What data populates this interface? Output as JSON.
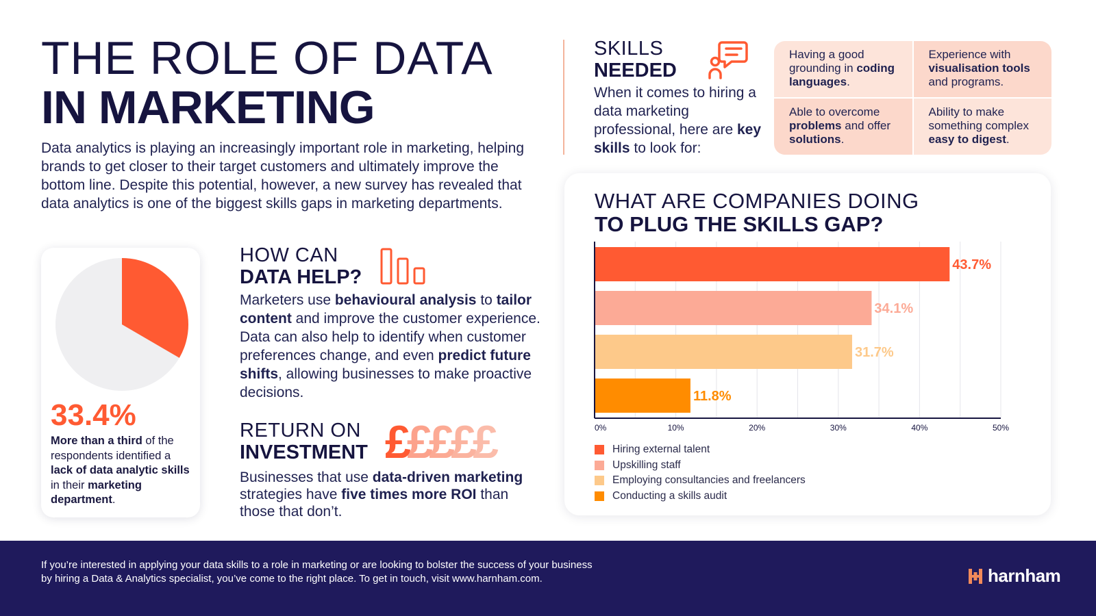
{
  "title": {
    "line1": "THE ROLE OF DATA",
    "line2": "IN MARKETING"
  },
  "intro": "Data analytics is playing an increasingly important role in marketing, helping brands to get closer to their target customers and ultimately improve the bottom line. Despite this potential, however, a new survey has revealed that data analytics is one of the biggest skills gaps in marketing departments.",
  "stat": {
    "value": "33.4%",
    "fraction": 0.334,
    "desc_parts": [
      {
        "text": "More than a third",
        "bold": true
      },
      {
        "text": " of the respondents identified a ",
        "bold": false
      },
      {
        "text": "lack of data analytic skills",
        "bold": true
      },
      {
        "text": " in their ",
        "bold": false
      },
      {
        "text": "marketing department",
        "bold": true
      },
      {
        "text": ".",
        "bold": false
      }
    ]
  },
  "help": {
    "heading_light": "HOW CAN",
    "heading_bold": "DATA HELP?",
    "icon": "bar-chart-icon",
    "parts": [
      {
        "text": "Marketers use ",
        "bold": false
      },
      {
        "text": "behavioural analysis",
        "bold": true
      },
      {
        "text": " to ",
        "bold": false
      },
      {
        "text": "tailor content",
        "bold": true
      },
      {
        "text": " and improve the customer experience. Data can also help to identify when customer preferences change, and even ",
        "bold": false
      },
      {
        "text": "predict future shifts",
        "bold": true
      },
      {
        "text": ", allowing businesses to make proactive decisions.",
        "bold": false
      }
    ]
  },
  "roi": {
    "heading_light": "RETURN ON",
    "heading_bold": "INVESTMENT",
    "pounds": [
      "£",
      "£",
      "£",
      "£",
      "£"
    ],
    "pound_colors": [
      "#ff5a32",
      "#fca28c",
      "#fcaa94",
      "#fbb39f",
      "#fbbcaa"
    ],
    "parts": [
      {
        "text": "Businesses that use ",
        "bold": false
      },
      {
        "text": "data-driven marketing",
        "bold": true
      },
      {
        "text": " strategies have ",
        "bold": false
      },
      {
        "text": "five times more ROI",
        "bold": true
      },
      {
        "text": " than those that don’t.",
        "bold": false
      }
    ]
  },
  "skills": {
    "heading_light": "SKILLS",
    "heading_bold": "NEEDED",
    "icon": "chat-person-icon",
    "parts": [
      {
        "text": "When it comes to hiring a data marketing professional, here are ",
        "bold": false
      },
      {
        "text": "key skills",
        "bold": true
      },
      {
        "text": " to look for:",
        "bold": false
      }
    ],
    "cells": [
      [
        {
          "text": "Having a good grounding in ",
          "bold": false
        },
        {
          "text": "coding languages",
          "bold": true
        },
        {
          "text": ".",
          "bold": false
        }
      ],
      [
        {
          "text": "Experience with ",
          "bold": false
        },
        {
          "text": "visualisation tools",
          "bold": true
        },
        {
          "text": " and programs.",
          "bold": false
        }
      ],
      [
        {
          "text": "Able to overcome ",
          "bold": false
        },
        {
          "text": "problems",
          "bold": true
        },
        {
          "text": " and offer ",
          "bold": false
        },
        {
          "text": "solutions",
          "bold": true
        },
        {
          "text": ".",
          "bold": false
        }
      ],
      [
        {
          "text": "Ability to make something complex ",
          "bold": false
        },
        {
          "text": "easy to digest",
          "bold": true
        },
        {
          "text": ".",
          "bold": false
        }
      ]
    ]
  },
  "chart_data": {
    "type": "bar",
    "orientation": "horizontal",
    "title_light": "WHAT ARE COMPANIES DOING",
    "title_bold": "TO PLUG THE SKILLS GAP?",
    "categories": [
      "Hiring external talent",
      "Upskilling staff",
      "Employing consultancies and freelancers",
      "Conducting a skills audit"
    ],
    "values": [
      43.7,
      34.1,
      31.7,
      11.8
    ],
    "value_labels": [
      "43.7%",
      "34.1%",
      "31.7%",
      "11.8%"
    ],
    "colors": [
      "#ff5a32",
      "#fcaa96",
      "#fdc98a",
      "#ff8c00"
    ],
    "xlim": [
      0,
      50
    ],
    "ticks": [
      0,
      10,
      20,
      30,
      40,
      50
    ],
    "tick_labels": [
      "0%",
      "10%",
      "20%",
      "30%",
      "40%",
      "50%"
    ],
    "grid": true,
    "legend_position": "bottom-left"
  },
  "footer": {
    "line1": "If you’re interested in applying your data skills to a role in marketing or are looking to bolster the success of your business",
    "line2": "by hiring a Data & Analytics specialist, you’ve come to the right place. To get in touch, visit www.harnham.com.",
    "logo_text": "harnham"
  }
}
